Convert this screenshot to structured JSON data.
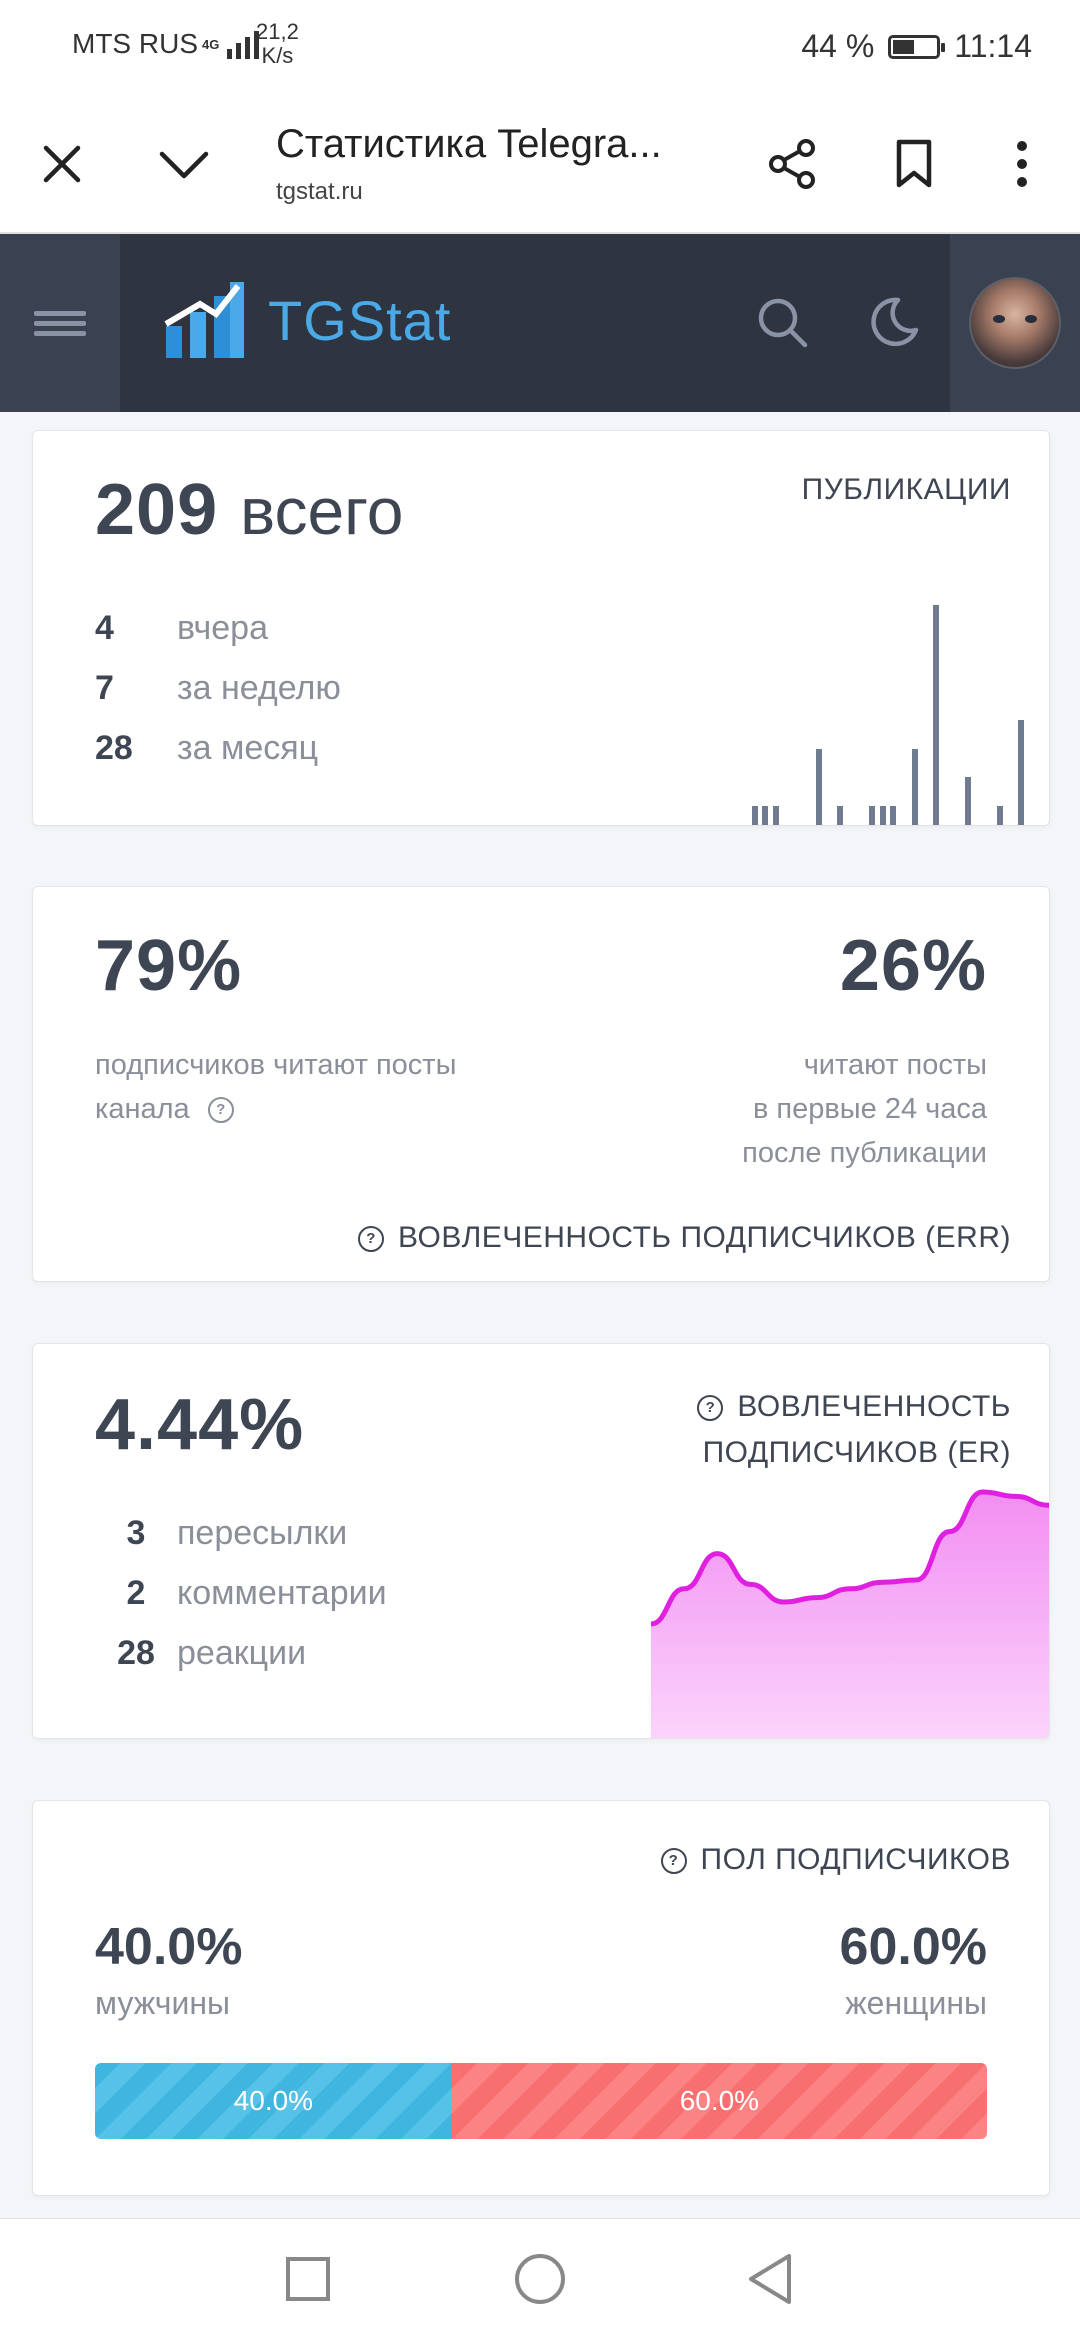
{
  "status_bar": {
    "carrier": "MTS RUS",
    "network": "4G",
    "speed_value": "21,2",
    "speed_unit": "K/s",
    "battery": "44 %",
    "time": "11:14"
  },
  "browser": {
    "title": "Статистика Telegra...",
    "url": "tgstat.ru",
    "icons": [
      "close-icon",
      "chevron-down-icon",
      "share-icon",
      "bookmark-icon",
      "more-vertical-icon"
    ]
  },
  "site_header": {
    "logo_text": "TGStat",
    "icons": [
      "menu-icon",
      "search-icon",
      "moon-icon"
    ]
  },
  "publications": {
    "title": "ПУБЛИКАЦИИ",
    "total_value": "209",
    "total_label": "всего",
    "rows": [
      {
        "value": "4",
        "label": "вчера"
      },
      {
        "value": "7",
        "label": "за неделю"
      },
      {
        "value": "28",
        "label": "за месяц"
      }
    ],
    "sparkline_color": "#6e7b91",
    "sparkline": [
      0,
      0,
      0,
      0,
      1,
      1,
      1,
      0,
      0,
      0,
      3,
      0,
      1,
      0,
      0,
      1,
      1,
      1,
      0,
      3,
      0,
      8,
      0,
      0,
      2,
      0,
      0,
      1,
      0,
      4
    ]
  },
  "err": {
    "left_value": "79%",
    "left_label_1": "подписчиков читают посты",
    "left_label_2": "канала",
    "right_value": "26%",
    "right_label_1": "читают посты",
    "right_label_2": "в первые 24 часа",
    "right_label_3": "после публикации",
    "title": "ВОВЛЕЧЕННОСТЬ ПОДПИСЧИКОВ (ERR)"
  },
  "er": {
    "value": "4.44%",
    "title_1": "ВОВЛЕЧЕННОСТЬ",
    "title_2": "ПОДПИСЧИКОВ (ER)",
    "rows": [
      {
        "value": "3",
        "label": "пересылки"
      },
      {
        "value": "2",
        "label": "комментарии"
      },
      {
        "value": "28",
        "label": "реакции"
      }
    ],
    "trend_color": "#e020e0",
    "trend": [
      0.4,
      0.56,
      0.72,
      0.58,
      0.5,
      0.52,
      0.56,
      0.59,
      0.6,
      0.82,
      1.0,
      0.98,
      0.94
    ]
  },
  "gender": {
    "title": "ПОЛ ПОДПИСЧИКОВ",
    "male_value": "40.0%",
    "male_label": "мужчины",
    "female_value": "60.0%",
    "female_label": "женщины",
    "male_fraction": 0.4,
    "female_fraction": 0.6,
    "male_color": "#3fb6e0",
    "female_color": "#f86f70"
  },
  "nav": {
    "icons": [
      "recents-square-icon",
      "home-circle-icon",
      "back-triangle-icon"
    ]
  }
}
